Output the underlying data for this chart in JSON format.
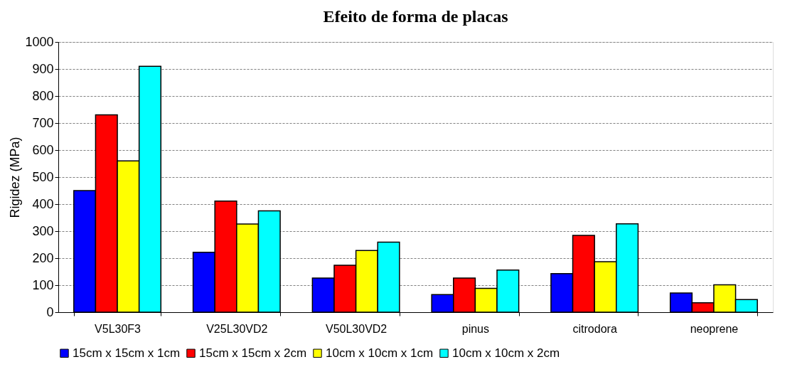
{
  "chart_data": {
    "type": "bar",
    "title": "Efeito de forma de placas",
    "ylabel": "Rigidez (MPa)",
    "categories": [
      "V5L30F3",
      "V25L30VD2",
      "V50L30VD2",
      "pinus",
      "citrodora",
      "neoprene"
    ],
    "series": [
      {
        "name": "15cm x 15cm x 1cm",
        "color": "#0000ff",
        "values": [
          450,
          222,
          126,
          65,
          143,
          71
        ]
      },
      {
        "name": "15cm x 15cm x 2cm",
        "color": "#ff0000",
        "values": [
          730,
          411,
          174,
          126,
          284,
          35
        ]
      },
      {
        "name": "10cm x 10cm x 1cm",
        "color": "#ffff00",
        "values": [
          560,
          326,
          228,
          88,
          187,
          101
        ]
      },
      {
        "name": "10cm x 10cm x 2cm",
        "color": "#00ffff",
        "values": [
          910,
          375,
          259,
          156,
          327,
          47
        ]
      }
    ],
    "ylim": [
      0,
      1000
    ],
    "yticks": [
      0,
      100,
      200,
      300,
      400,
      500,
      600,
      700,
      800,
      900,
      1000
    ],
    "grid": "y",
    "legend": "bottom"
  }
}
